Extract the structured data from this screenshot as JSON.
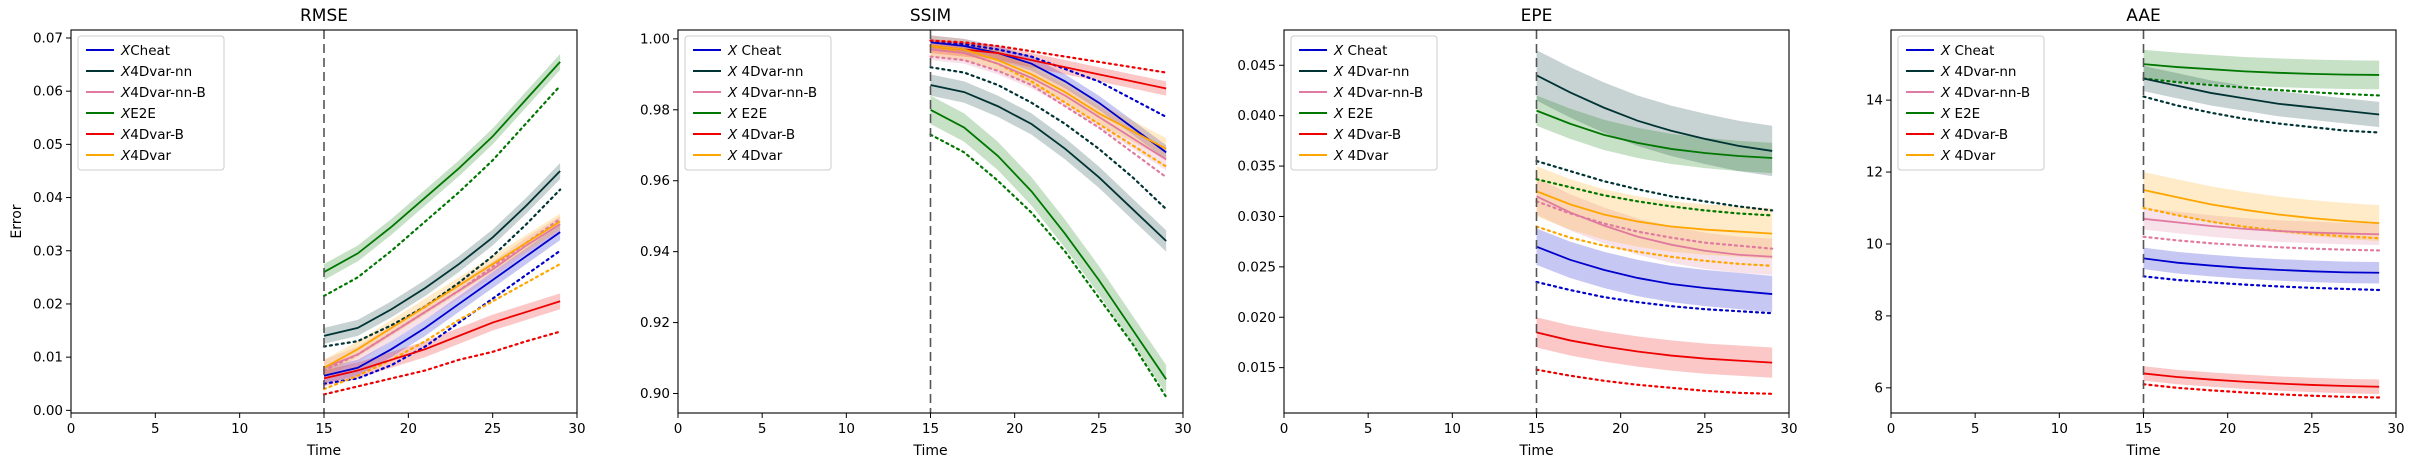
{
  "figure": {
    "background": "#ffffff"
  },
  "chart_data": [
    {
      "type": "line",
      "title": "RMSE",
      "xlabel": "Time",
      "ylabel": "Error",
      "xlim": [
        0,
        30
      ],
      "ylim": [
        -0.0005,
        0.0715
      ],
      "xticks": [
        0,
        5,
        10,
        15,
        20,
        25,
        30
      ],
      "xtick_labels": [
        "0",
        "5",
        "10",
        "15",
        "20",
        "25",
        "30"
      ],
      "yticks": [
        0.0,
        0.01,
        0.02,
        0.03,
        0.04,
        0.05,
        0.06,
        0.07
      ],
      "ytick_labels": [
        "0.00",
        "0.01",
        "0.02",
        "0.03",
        "0.04",
        "0.05",
        "0.06",
        "0.07"
      ],
      "vline_x": 15,
      "legend_position": "upper-left",
      "grid": false,
      "x": [
        15,
        17,
        19,
        21,
        23,
        25,
        27,
        29
      ],
      "series": [
        {
          "name": "XCheat",
          "name_parts": [
            "X",
            "Cheat"
          ],
          "color": "#0000cd",
          "values": [
            0.0065,
            0.008,
            0.0115,
            0.0155,
            0.02,
            0.0245,
            0.029,
            0.0335
          ],
          "band": 0.0015,
          "dotted": [
            0.005,
            0.006,
            0.0085,
            0.012,
            0.0165,
            0.021,
            0.0255,
            0.03
          ]
        },
        {
          "name": "X4Dvar-nn",
          "name_parts": [
            "X",
            "4Dvar-nn"
          ],
          "color": "#003333",
          "values": [
            0.014,
            0.0155,
            0.019,
            0.023,
            0.0275,
            0.0325,
            0.0385,
            0.045
          ],
          "band": 0.0015,
          "dotted": [
            0.012,
            0.013,
            0.016,
            0.0195,
            0.024,
            0.029,
            0.035,
            0.0415
          ]
        },
        {
          "name": "X4Dvar-nn-B",
          "name_parts": [
            "X",
            "4Dvar-nn-B"
          ],
          "color": "#e07aa0",
          "values": [
            0.008,
            0.0105,
            0.0145,
            0.0185,
            0.0225,
            0.0265,
            0.031,
            0.035
          ],
          "band": 0.0015,
          "dotted": [
            0.0075,
            0.0105,
            0.0145,
            0.0185,
            0.0225,
            0.027,
            0.0315,
            0.036
          ]
        },
        {
          "name": "XE2E",
          "name_parts": [
            "X",
            "E2E"
          ],
          "color": "#007700",
          "values": [
            0.026,
            0.0295,
            0.0345,
            0.04,
            0.0455,
            0.0515,
            0.0585,
            0.0655
          ],
          "band": 0.0015,
          "dotted": [
            0.0215,
            0.025,
            0.03,
            0.0355,
            0.041,
            0.047,
            0.054,
            0.061
          ]
        },
        {
          "name": "X4Dvar-B",
          "name_parts": [
            "X",
            "4Dvar-B"
          ],
          "color": "#ee0000",
          "values": [
            0.006,
            0.0075,
            0.0095,
            0.0115,
            0.014,
            0.0165,
            0.0185,
            0.0205
          ],
          "band": 0.0015,
          "dotted": [
            0.003,
            0.0045,
            0.006,
            0.0075,
            0.0095,
            0.011,
            0.013,
            0.0148
          ]
        },
        {
          "name": "X4Dvar",
          "name_parts": [
            "X",
            "4Dvar"
          ],
          "color": "#ffa500",
          "values": [
            0.008,
            0.0115,
            0.0155,
            0.0195,
            0.0235,
            0.0275,
            0.0315,
            0.0355
          ],
          "band": 0.0015,
          "dotted": [
            0.004,
            0.0065,
            0.0095,
            0.013,
            0.017,
            0.0205,
            0.024,
            0.0275
          ]
        }
      ]
    },
    {
      "type": "line",
      "title": "SSIM",
      "xlabel": "Time",
      "ylabel": "",
      "xlim": [
        0,
        30
      ],
      "ylim": [
        0.8945,
        1.0025
      ],
      "xticks": [
        0,
        5,
        10,
        15,
        20,
        25,
        30
      ],
      "xtick_labels": [
        "0",
        "5",
        "10",
        "15",
        "20",
        "25",
        "30"
      ],
      "yticks": [
        0.9,
        0.92,
        0.94,
        0.96,
        0.98,
        1.0
      ],
      "ytick_labels": [
        "0.90",
        "0.92",
        "0.94",
        "0.96",
        "0.98",
        "1.00"
      ],
      "vline_x": 15,
      "legend_position": "upper-left",
      "grid": false,
      "x": [
        15,
        17,
        19,
        21,
        23,
        25,
        27,
        29
      ],
      "series": [
        {
          "name": "X Cheat",
          "name_parts": [
            "X",
            " Cheat"
          ],
          "color": "#0000cd",
          "values": [
            0.999,
            0.998,
            0.996,
            0.993,
            0.988,
            0.982,
            0.975,
            0.968
          ],
          "band": 0.002,
          "dotted": [
            0.9995,
            0.9985,
            0.997,
            0.995,
            0.9915,
            0.988,
            0.983,
            0.978
          ]
        },
        {
          "name": "X 4Dvar-nn",
          "name_parts": [
            "X",
            " 4Dvar-nn"
          ],
          "color": "#003333",
          "values": [
            0.987,
            0.985,
            0.981,
            0.976,
            0.969,
            0.961,
            0.952,
            0.943
          ],
          "band": 0.003,
          "dotted": [
            0.992,
            0.9905,
            0.987,
            0.982,
            0.976,
            0.969,
            0.961,
            0.952
          ]
        },
        {
          "name": "X 4Dvar-nn-B",
          "name_parts": [
            "X",
            " 4Dvar-nn-B"
          ],
          "color": "#e07aa0",
          "values": [
            0.997,
            0.996,
            0.993,
            0.989,
            0.984,
            0.978,
            0.972,
            0.966
          ],
          "band": 0.003,
          "dotted": [
            0.995,
            0.994,
            0.991,
            0.987,
            0.981,
            0.975,
            0.968,
            0.961
          ]
        },
        {
          "name": "X E2E",
          "name_parts": [
            "X",
            " E2E"
          ],
          "color": "#007700",
          "values": [
            0.98,
            0.975,
            0.967,
            0.957,
            0.945,
            0.932,
            0.918,
            0.904
          ],
          "band": 0.004,
          "dotted": [
            0.973,
            0.968,
            0.96,
            0.951,
            0.94,
            0.927,
            0.914,
            0.899
          ]
        },
        {
          "name": "X 4Dvar-B",
          "name_parts": [
            "X",
            " 4Dvar-B"
          ],
          "color": "#ee0000",
          "values": [
            0.998,
            0.997,
            0.996,
            0.994,
            0.992,
            0.99,
            0.988,
            0.986
          ],
          "band": 0.002,
          "dotted": [
            0.9995,
            0.999,
            0.998,
            0.9965,
            0.995,
            0.9935,
            0.992,
            0.9905
          ]
        },
        {
          "name": "X 4Dvar",
          "name_parts": [
            "X",
            " 4Dvar"
          ],
          "color": "#ffa500",
          "values": [
            0.998,
            0.997,
            0.994,
            0.99,
            0.985,
            0.979,
            0.974,
            0.969
          ],
          "band": 0.003,
          "dotted": [
            0.998,
            0.996,
            0.993,
            0.988,
            0.982,
            0.976,
            0.97,
            0.964
          ]
        }
      ]
    },
    {
      "type": "line",
      "title": "EPE",
      "xlabel": "Time",
      "ylabel": "",
      "xlim": [
        0,
        30
      ],
      "ylim": [
        0.0105,
        0.0485
      ],
      "xticks": [
        0,
        5,
        10,
        15,
        20,
        25,
        30
      ],
      "xtick_labels": [
        "0",
        "5",
        "10",
        "15",
        "20",
        "25",
        "30"
      ],
      "yticks": [
        0.015,
        0.02,
        0.025,
        0.03,
        0.035,
        0.04,
        0.045
      ],
      "ytick_labels": [
        "0.015",
        "0.020",
        "0.025",
        "0.030",
        "0.035",
        "0.040",
        "0.045"
      ],
      "vline_x": 15,
      "legend_position": "upper-left",
      "grid": false,
      "x": [
        15,
        17,
        19,
        21,
        23,
        25,
        27,
        29
      ],
      "series": [
        {
          "name": "X Cheat",
          "name_parts": [
            "X",
            " Cheat"
          ],
          "color": "#0000cd",
          "values": [
            0.027,
            0.0257,
            0.0247,
            0.0239,
            0.0233,
            0.0229,
            0.0226,
            0.0223
          ],
          "band": 0.0018,
          "dotted": [
            0.0235,
            0.0227,
            0.022,
            0.0215,
            0.0211,
            0.0208,
            0.0206,
            0.0204
          ]
        },
        {
          "name": "X 4Dvar-nn",
          "name_parts": [
            "X",
            " 4Dvar-nn"
          ],
          "color": "#003333",
          "values": [
            0.044,
            0.0423,
            0.0408,
            0.0395,
            0.0385,
            0.0377,
            0.037,
            0.0365
          ],
          "band": 0.0025,
          "dotted": [
            0.0355,
            0.0345,
            0.0335,
            0.0327,
            0.032,
            0.0315,
            0.031,
            0.0306
          ]
        },
        {
          "name": "X 4Dvar-nn-B",
          "name_parts": [
            "X",
            " 4Dvar-nn-B"
          ],
          "color": "#e07aa0",
          "values": [
            0.032,
            0.0304,
            0.0291,
            0.028,
            0.0272,
            0.0266,
            0.0262,
            0.026
          ],
          "band": 0.0018,
          "dotted": [
            0.0315,
            0.0303,
            0.0293,
            0.0285,
            0.0279,
            0.0274,
            0.0271,
            0.0268
          ]
        },
        {
          "name": "X E2E",
          "name_parts": [
            "X",
            " E2E"
          ],
          "color": "#007700",
          "values": [
            0.0405,
            0.0392,
            0.0381,
            0.0373,
            0.0367,
            0.0363,
            0.036,
            0.0358
          ],
          "band": 0.0015,
          "dotted": [
            0.0337,
            0.0329,
            0.0321,
            0.0315,
            0.031,
            0.0306,
            0.0303,
            0.0301
          ]
        },
        {
          "name": "X 4Dvar-B",
          "name_parts": [
            "X",
            " 4Dvar-B"
          ],
          "color": "#ee0000",
          "values": [
            0.0185,
            0.0177,
            0.0171,
            0.0166,
            0.0162,
            0.0159,
            0.0157,
            0.0155
          ],
          "band": 0.0015,
          "dotted": [
            0.0148,
            0.0142,
            0.0137,
            0.0133,
            0.013,
            0.0127,
            0.0125,
            0.0124
          ]
        },
        {
          "name": "X 4Dvar",
          "name_parts": [
            "X",
            " 4Dvar"
          ],
          "color": "#ffa500",
          "values": [
            0.0325,
            0.0312,
            0.0302,
            0.0295,
            0.029,
            0.0287,
            0.0285,
            0.0283
          ],
          "band": 0.0025,
          "dotted": [
            0.029,
            0.0279,
            0.0271,
            0.0265,
            0.026,
            0.0256,
            0.0253,
            0.0251
          ]
        }
      ]
    },
    {
      "type": "line",
      "title": "AAE",
      "xlabel": "Time",
      "ylabel": "",
      "xlim": [
        0,
        30
      ],
      "ylim": [
        5.3,
        15.95
      ],
      "xticks": [
        0,
        5,
        10,
        15,
        20,
        25,
        30
      ],
      "xtick_labels": [
        "0",
        "5",
        "10",
        "15",
        "20",
        "25",
        "30"
      ],
      "yticks": [
        6,
        8,
        10,
        12,
        14
      ],
      "ytick_labels": [
        "6",
        "8",
        "10",
        "12",
        "14"
      ],
      "vline_x": 15,
      "legend_position": "upper-left",
      "grid": false,
      "x": [
        15,
        17,
        19,
        21,
        23,
        25,
        27,
        29
      ],
      "series": [
        {
          "name": "X Cheat",
          "name_parts": [
            "X",
            " Cheat"
          ],
          "color": "#0000cd",
          "values": [
            9.6,
            9.48,
            9.4,
            9.33,
            9.28,
            9.24,
            9.21,
            9.2
          ],
          "band": 0.3,
          "dotted": [
            9.1,
            9.0,
            8.93,
            8.87,
            8.82,
            8.78,
            8.75,
            8.72
          ]
        },
        {
          "name": "X 4Dvar-nn",
          "name_parts": [
            "X",
            " 4Dvar-nn"
          ],
          "color": "#003333",
          "values": [
            14.6,
            14.4,
            14.2,
            14.05,
            13.9,
            13.8,
            13.7,
            13.6
          ],
          "band": 0.35,
          "dotted": [
            14.1,
            13.85,
            13.65,
            13.48,
            13.35,
            13.25,
            13.15,
            13.1
          ]
        },
        {
          "name": "X 4Dvar-nn-B",
          "name_parts": [
            "X",
            " 4Dvar-nn-B"
          ],
          "color": "#e07aa0",
          "values": [
            10.7,
            10.6,
            10.5,
            10.42,
            10.36,
            10.32,
            10.29,
            10.27
          ],
          "band": 0.3,
          "dotted": [
            10.2,
            10.1,
            10.02,
            9.96,
            9.91,
            9.87,
            9.84,
            9.82
          ]
        },
        {
          "name": "X E2E",
          "name_parts": [
            "X",
            " E2E"
          ],
          "color": "#007700",
          "values": [
            15.0,
            14.92,
            14.86,
            14.8,
            14.76,
            14.73,
            14.71,
            14.7
          ],
          "band": 0.4,
          "dotted": [
            14.6,
            14.5,
            14.42,
            14.35,
            14.28,
            14.22,
            14.17,
            14.13
          ]
        },
        {
          "name": "X 4Dvar-B",
          "name_parts": [
            "X",
            " 4Dvar-B"
          ],
          "color": "#ee0000",
          "values": [
            6.4,
            6.3,
            6.23,
            6.17,
            6.12,
            6.08,
            6.05,
            6.03
          ],
          "band": 0.2,
          "dotted": [
            6.1,
            6.0,
            5.93,
            5.87,
            5.82,
            5.78,
            5.75,
            5.73
          ]
        },
        {
          "name": "X 4Dvar",
          "name_parts": [
            "X",
            " 4Dvar"
          ],
          "color": "#ffa500",
          "values": [
            11.5,
            11.3,
            11.1,
            10.95,
            10.82,
            10.72,
            10.64,
            10.58
          ],
          "band": 0.5,
          "dotted": [
            11.0,
            10.8,
            10.62,
            10.48,
            10.37,
            10.28,
            10.21,
            10.16
          ]
        }
      ]
    }
  ]
}
